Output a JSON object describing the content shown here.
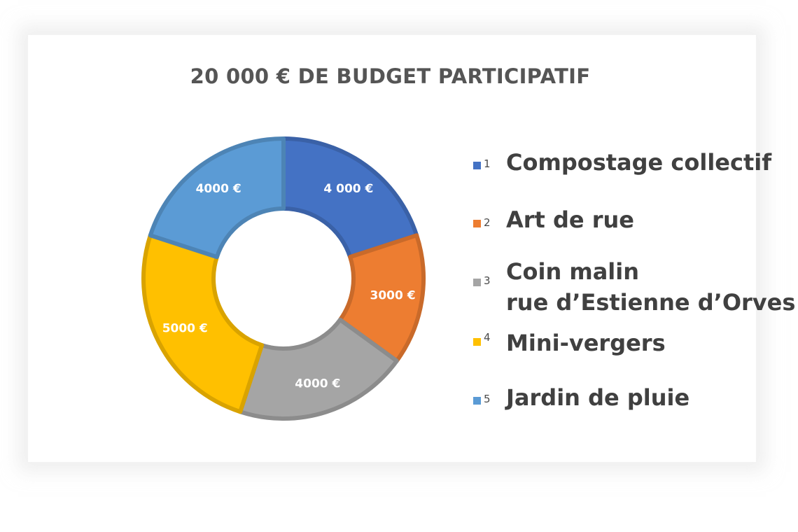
{
  "chart_data": {
    "type": "pie",
    "subtype": "donut",
    "title": "20 000 € DE BUDGET PARTICIPATIF",
    "categories": [
      "Compostage collectif",
      "Art de rue",
      "Coin malin\nrue d’Estienne d’Orves",
      "Mini-vergers",
      "Jardin de pluie"
    ],
    "category_numbers": [
      "1",
      "2",
      "3",
      "4",
      "5"
    ],
    "values": [
      4000,
      3000,
      4000,
      5000,
      4000
    ],
    "data_labels": [
      "4 000 €",
      "3000 €",
      "4000 €",
      "5000 €",
      "4000 €"
    ],
    "colors": [
      "#4472C4",
      "#ED7D31",
      "#A5A5A5",
      "#FFC000",
      "#5B9BD5"
    ],
    "legend_position": "right",
    "start_angle": "top, clockwise"
  }
}
